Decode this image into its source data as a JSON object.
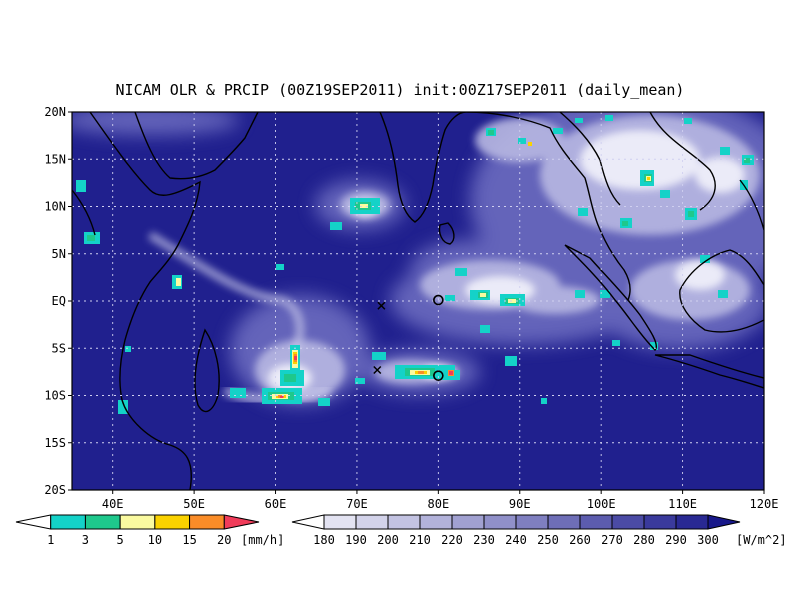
{
  "title": "NICAM OLR & PRCIP (00Z19SEP2011) init:00Z17SEP2011 (daily_mean)",
  "map": {
    "lon_range": [
      35,
      120
    ],
    "lat_range": [
      -20,
      20
    ],
    "lon_ticks": [
      {
        "value": 40,
        "label": "40E"
      },
      {
        "value": 50,
        "label": "50E"
      },
      {
        "value": 60,
        "label": "60E"
      },
      {
        "value": 70,
        "label": "70E"
      },
      {
        "value": 80,
        "label": "80E"
      },
      {
        "value": 90,
        "label": "90E"
      },
      {
        "value": 100,
        "label": "100E"
      },
      {
        "value": 110,
        "label": "110E"
      },
      {
        "value": 120,
        "label": "120E"
      }
    ],
    "lat_ticks": [
      {
        "value": 20,
        "label": "20N"
      },
      {
        "value": 15,
        "label": "15N"
      },
      {
        "value": 10,
        "label": "10N"
      },
      {
        "value": 5,
        "label": "5N"
      },
      {
        "value": 0,
        "label": "EQ"
      },
      {
        "value": -5,
        "label": "5S"
      },
      {
        "value": -10,
        "label": "10S"
      },
      {
        "value": -15,
        "label": "15S"
      },
      {
        "value": -20,
        "label": "20S"
      }
    ],
    "grid": true,
    "background_color": "#20208e",
    "markers": [
      {
        "type": "x",
        "lon": 73,
        "lat": -0.5
      },
      {
        "type": "x",
        "lon": 72.5,
        "lat": -7.3
      },
      {
        "type": "o",
        "lon": 80,
        "lat": 0.1
      },
      {
        "type": "o",
        "lon": 80,
        "lat": -7.9
      }
    ]
  },
  "precip_legend": {
    "labels": [
      "1",
      "3",
      "5",
      "10",
      "15",
      "20"
    ],
    "unit": "[mm/h]",
    "colors": [
      "#ffffff",
      "#14d2c8",
      "#1ec88c",
      "#fafaa0",
      "#fad200",
      "#fa8c28",
      "#f03c5a"
    ]
  },
  "olr_legend": {
    "labels": [
      "180",
      "190",
      "200",
      "210",
      "220",
      "230",
      "240",
      "250",
      "260",
      "270",
      "280",
      "290",
      "300"
    ],
    "unit": "[W/m^2]",
    "colors": [
      "#ffffff",
      "#e3e3f2",
      "#d3d3ea",
      "#c3c3e2",
      "#b2b2da",
      "#a1a1d1",
      "#9090c9",
      "#7f7fc0",
      "#6e6eb7",
      "#5c5cae",
      "#4b4ba5",
      "#3a3a9c",
      "#292993",
      "#18188a"
    ]
  }
}
